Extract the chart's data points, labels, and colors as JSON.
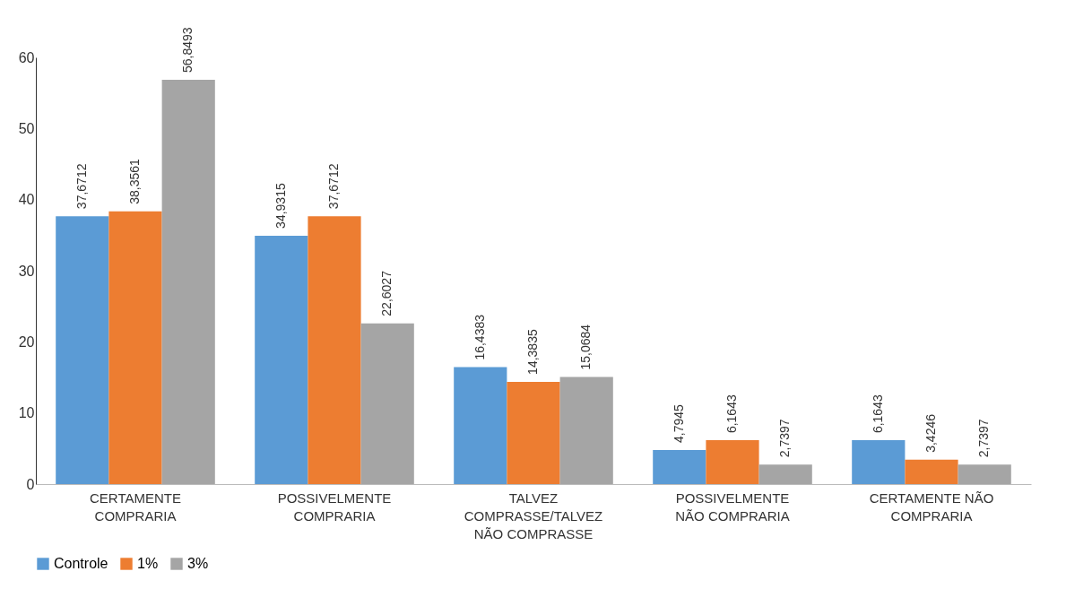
{
  "chart_data": {
    "type": "bar",
    "categories": [
      "CERTAMENTE COMPRARIA",
      "POSSIVELMENTE COMPRARIA",
      "TALVEZ COMPRASSE/TALVEZ NÃO COMPRASSE",
      "POSSIVELMENTE NÃO COMPRARIA",
      "CERTAMENTE NÃO COMPRARIA"
    ],
    "series": [
      {
        "name": "Controle",
        "color": "#5b9bd5",
        "values": [
          37.6712,
          34.9315,
          16.4383,
          4.7945,
          6.1643
        ],
        "value_labels": [
          "37,6712",
          "34,9315",
          "16,4383",
          "4,7945",
          "6,1643"
        ]
      },
      {
        "name": "1%",
        "color": "#ed7d31",
        "values": [
          38.3561,
          37.6712,
          14.3835,
          6.1643,
          3.4246
        ],
        "value_labels": [
          "38,3561",
          "37,6712",
          "14,3835",
          "6,1643",
          "3,4246"
        ]
      },
      {
        "name": "3%",
        "color": "#a5a5a5",
        "values": [
          56.8493,
          22.6027,
          15.0684,
          2.7397,
          2.7397
        ],
        "value_labels": [
          "56,8493",
          "22,6027",
          "15,0684",
          "2,7397",
          "2,7397"
        ]
      }
    ],
    "ylim": [
      0,
      60
    ],
    "yticks": [
      0,
      10,
      20,
      30,
      40,
      50,
      60
    ],
    "legend": "bottom"
  }
}
